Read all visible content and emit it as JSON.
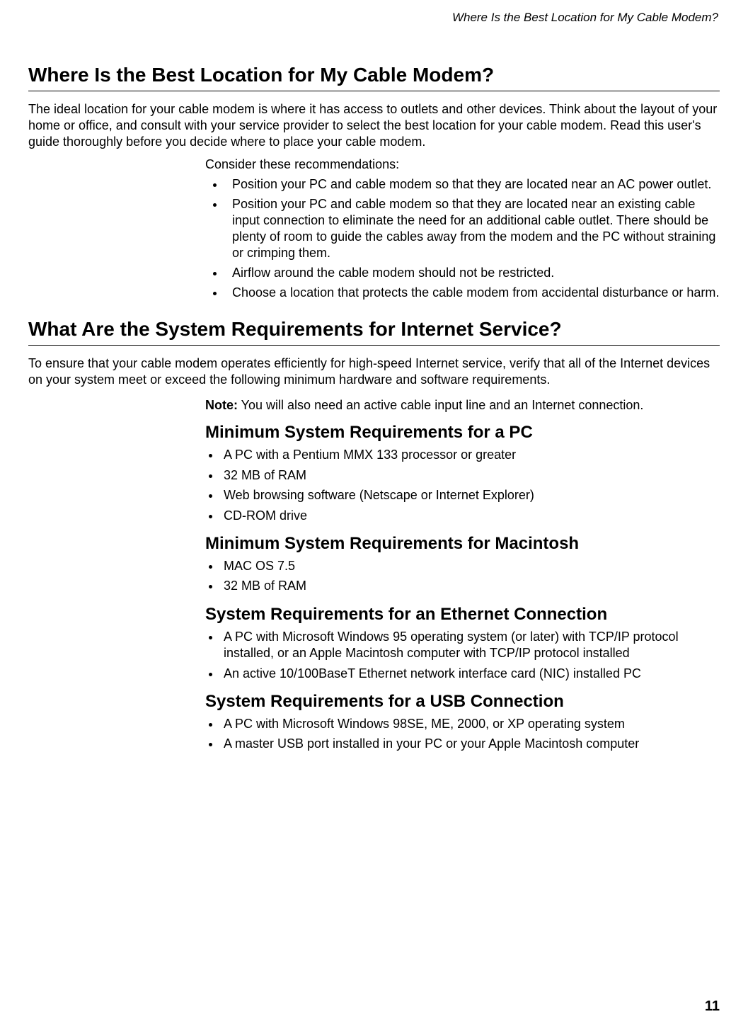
{
  "running_header": "Where Is the Best Location for My Cable Modem?",
  "section1": {
    "title": "Where Is the Best Location for My Cable Modem?",
    "intro": "The ideal location for your cable modem is where it has access to outlets and other devices. Think about the layout of your home or office, and consult with your service provider to select the best location for your cable modem. Read this user's guide thoroughly before you decide where to place your cable modem.",
    "lead": "Consider these recommendations:",
    "bullets": [
      "Position your PC and cable modem so that they are located near an AC power outlet.",
      "Position your PC and cable modem so that they are located near an existing cable input connection to eliminate the need for an additional cable outlet. There should be plenty of room to guide the cables away from the modem and the PC without straining or crimping them.",
      "Airflow around the cable modem should not be restricted.",
      "Choose a location that protects the cable modem from accidental disturbance or harm."
    ]
  },
  "section2": {
    "title": "What Are the System Requirements for Internet Service?",
    "intro": "To ensure that your cable modem operates efficiently for high-speed Internet service, verify that all of the Internet devices on your system meet or exceed the following minimum hardware and software requirements.",
    "note_label": "Note:",
    "note_text": " You will also need an active cable input line and an Internet connection.",
    "sub1": {
      "title": "Minimum System Requirements for a PC",
      "items": [
        "A PC with a Pentium MMX 133 processor or greater",
        "32 MB of RAM",
        "Web browsing software (Netscape or Internet Explorer)",
        "CD-ROM drive"
      ]
    },
    "sub2": {
      "title": "Minimum System Requirements for Macintosh",
      "items": [
        "MAC OS 7.5",
        "32 MB of RAM"
      ]
    },
    "sub3": {
      "title": "System Requirements for an Ethernet Connection",
      "items": [
        "A PC with Microsoft Windows 95 operating system (or later) with TCP/IP protocol installed, or an Apple Macintosh computer with TCP/IP protocol installed",
        "An active 10/100BaseT Ethernet network interface card (NIC) installed PC"
      ]
    },
    "sub4": {
      "title": "System Requirements for a USB Connection",
      "items": [
        "A PC with Microsoft Windows 98SE, ME, 2000, or XP operating system",
        "A master USB port installed in your PC or your Apple Macintosh computer"
      ]
    }
  },
  "page_number": "11"
}
